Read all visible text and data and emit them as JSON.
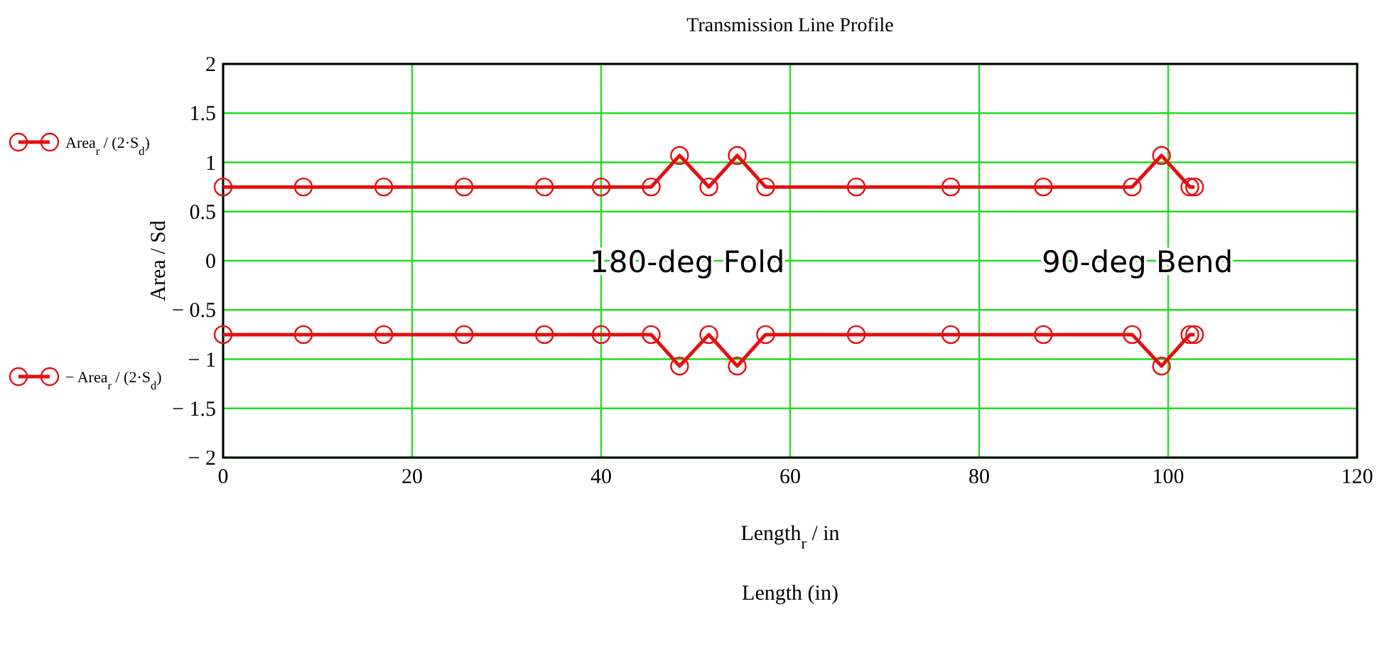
{
  "chart_data": {
    "type": "line",
    "title": "Transmission Line Profile",
    "xlabel": "Length$_{r}$ / in",
    "ylabel": "Area / Sd",
    "x": [
      0,
      8.5,
      17,
      25.5,
      34,
      40,
      45.3,
      48.3,
      51.4,
      54.4,
      57.4,
      67,
      77,
      86.8,
      96.2,
      99.3,
      102.3,
      102.8
    ],
    "series": [
      {
        "name": "Area$_{r}$ / (2·S$_{d}$)",
        "color": "#e41010",
        "values": [
          0.75,
          0.75,
          0.75,
          0.75,
          0.75,
          0.75,
          0.75,
          1.07,
          0.75,
          1.07,
          0.75,
          0.75,
          0.75,
          0.75,
          0.75,
          1.07,
          0.75,
          0.75
        ]
      },
      {
        "name": "− Area$_{r}$ / (2·S$_{d}$)",
        "color": "#e41010",
        "values": [
          -0.75,
          -0.75,
          -0.75,
          -0.75,
          -0.75,
          -0.75,
          -0.75,
          -1.07,
          -0.75,
          -1.07,
          -0.75,
          -0.75,
          -0.75,
          -0.75,
          -0.75,
          -1.07,
          -0.75,
          -0.75
        ]
      }
    ],
    "xlim": [
      0,
      120
    ],
    "xticks": [
      0,
      20,
      40,
      60,
      80,
      100,
      120
    ],
    "ylim": [
      -2,
      2
    ],
    "yticks": [
      -2,
      -1.5,
      -1,
      -0.5,
      0,
      0.5,
      1,
      1.5,
      2
    ],
    "grid": true,
    "legend": "left",
    "marker": "circle",
    "line_style": "solid",
    "annotations": [
      "180-deg Fold",
      "90-deg Bend",
      "Length (in)"
    ]
  }
}
